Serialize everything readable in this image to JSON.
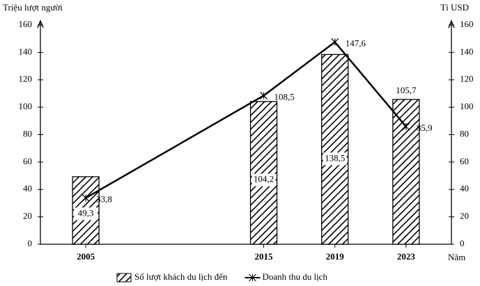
{
  "chart_data": {
    "type": "combo",
    "y_label": "Triệu lượt người",
    "y2_label": "Tỉ USD",
    "x_label": "Năm",
    "x": [
      2005,
      2015,
      2019,
      2023
    ],
    "xlim": [
      2002.45,
      2025.55
    ],
    "xticks": [
      2005,
      2015,
      2019,
      2023
    ],
    "ylim": [
      0,
      160
    ],
    "yticks": [
      0,
      20,
      40,
      60,
      80,
      100,
      120,
      140,
      160
    ],
    "y2lim": [
      0,
      160
    ],
    "y2ticks": [
      0,
      20,
      40,
      60,
      80,
      100,
      120,
      140,
      160
    ],
    "series": [
      {
        "name": "Số lượt khách du lịch đến",
        "type": "bar",
        "color": "#000000",
        "axis": "y",
        "values": [
          49.3,
          104.2,
          138.5,
          105.7
        ],
        "value_labels": [
          "49,3",
          "104,2",
          "138,5",
          "105,7"
        ]
      },
      {
        "name": "Doanh thu du lịch",
        "type": "line",
        "color": "#000000",
        "axis": "y2",
        "values": [
          33.8,
          108.5,
          147.6,
          85.9
        ],
        "value_labels": [
          "33,8",
          "108,5",
          "147,6",
          "85,9"
        ]
      }
    ],
    "legend": "bottom"
  }
}
